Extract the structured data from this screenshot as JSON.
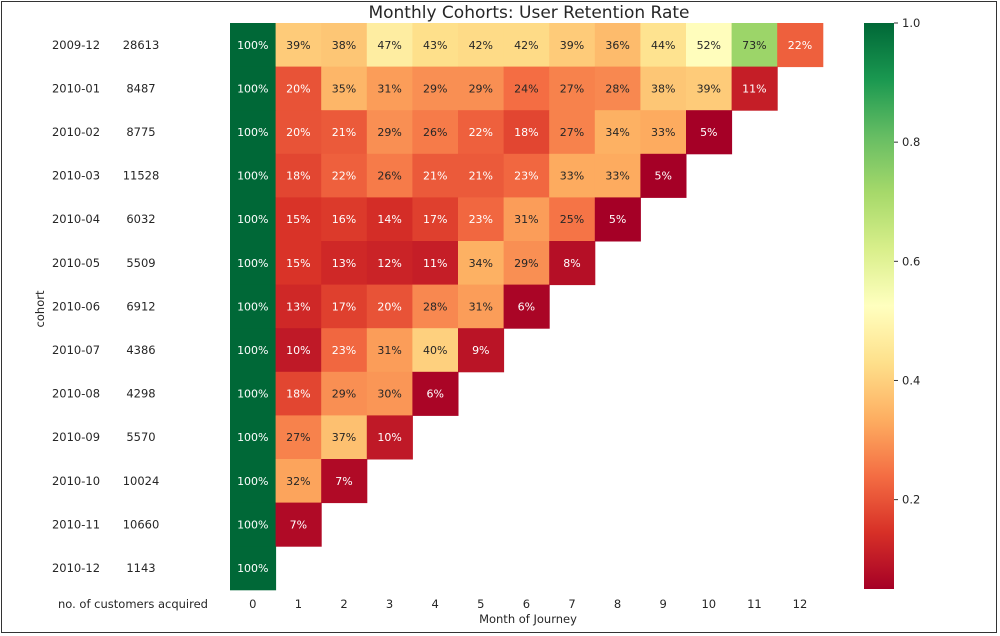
{
  "chart_data": {
    "type": "heatmap",
    "title": "Monthly Cohorts: User Retention Rate",
    "xlabel": "Month of Journey",
    "ylabel": "cohort",
    "customers_column_label": "no. of customers acquired",
    "x": [
      "0",
      "1",
      "2",
      "3",
      "4",
      "5",
      "6",
      "7",
      "8",
      "9",
      "10",
      "11",
      "12"
    ],
    "cohorts": [
      "2009-12",
      "2010-01",
      "2010-02",
      "2010-03",
      "2010-04",
      "2010-05",
      "2010-06",
      "2010-07",
      "2010-08",
      "2010-09",
      "2010-10",
      "2010-11",
      "2010-12"
    ],
    "customers": [
      "28613",
      "8487",
      "8775",
      "11528",
      "6032",
      "5509",
      "6912",
      "4386",
      "4298",
      "5570",
      "10024",
      "10660",
      "1143"
    ],
    "values": [
      [
        100,
        39,
        38,
        47,
        43,
        42,
        42,
        39,
        36,
        44,
        52,
        73,
        22
      ],
      [
        100,
        20,
        35,
        31,
        29,
        29,
        24,
        27,
        28,
        38,
        39,
        11
      ],
      [
        100,
        20,
        21,
        29,
        26,
        22,
        18,
        27,
        34,
        33,
        5
      ],
      [
        100,
        18,
        22,
        26,
        21,
        21,
        23,
        33,
        33,
        5
      ],
      [
        100,
        15,
        16,
        14,
        17,
        23,
        31,
        25,
        5
      ],
      [
        100,
        15,
        13,
        12,
        11,
        34,
        29,
        8
      ],
      [
        100,
        13,
        17,
        20,
        28,
        31,
        6
      ],
      [
        100,
        10,
        23,
        31,
        40,
        9
      ],
      [
        100,
        18,
        29,
        30,
        6
      ],
      [
        100,
        27,
        37,
        10
      ],
      [
        100,
        32,
        7
      ],
      [
        100,
        7
      ],
      [
        100
      ]
    ],
    "value_format": "percent",
    "colormap": "RdYlGn",
    "color_range": [
      0.05,
      1.0
    ],
    "colorbar_ticks": [
      "0.2",
      "0.4",
      "0.6",
      "0.8",
      "1.0"
    ],
    "colorbar_tick_values": [
      0.2,
      0.4,
      0.6,
      0.8,
      1.0
    ]
  }
}
